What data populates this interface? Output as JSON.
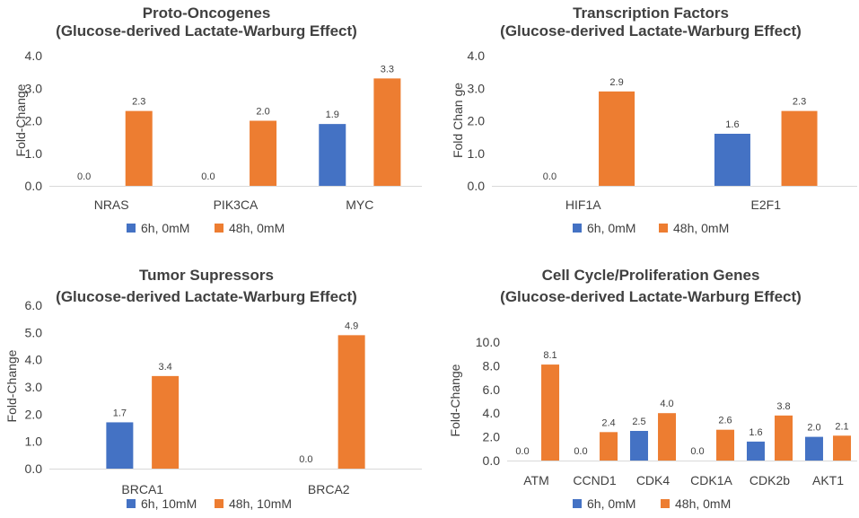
{
  "colors": {
    "series1": "#4472C4",
    "series2": "#ED7D31"
  },
  "chart_data": [
    {
      "type": "bar",
      "title": [
        "Proto-Oncogenes",
        "(Glucose-derived Lactate-Warburg Effect)"
      ],
      "ylabel": "Fold-Change",
      "ylim": [
        0,
        4
      ],
      "yticks": [
        "0.0",
        "1.0",
        "2.0",
        "3.0",
        "4.0"
      ],
      "categories": [
        "NRAS",
        "PIK3CA",
        "MYC"
      ],
      "series": [
        {
          "name": "6h, 0mM",
          "values": [
            0.0,
            0.0,
            1.9
          ],
          "labels": [
            "0.0",
            "0.0",
            "1.9"
          ]
        },
        {
          "name": "48h, 0mM",
          "values": [
            2.3,
            2.0,
            3.3
          ],
          "labels": [
            "2.3",
            "2.0",
            "3.3"
          ]
        }
      ]
    },
    {
      "type": "bar",
      "title": [
        "Transcription Factors",
        "(Glucose-derived Lactate-Warburg Effect)"
      ],
      "ylabel": "Fold Chan ge",
      "ylim": [
        0,
        4
      ],
      "yticks": [
        "0.0",
        "1.0",
        "2.0",
        "3.0",
        "4.0"
      ],
      "categories": [
        "HIF1A",
        "E2F1"
      ],
      "series": [
        {
          "name": "6h, 0mM",
          "values": [
            0.0,
            1.6
          ],
          "labels": [
            "0.0",
            "1.6"
          ]
        },
        {
          "name": "48h, 0mM",
          "values": [
            2.9,
            2.3
          ],
          "labels": [
            "2.9",
            "2.3"
          ]
        }
      ]
    },
    {
      "type": "bar",
      "title": [
        "Tumor Supressors",
        "(Glucose-derived Lactate-Warburg Effect)"
      ],
      "ylabel": "Fold-Change",
      "ylim": [
        0,
        6
      ],
      "yticks": [
        "0.0",
        "1.0",
        "2.0",
        "3.0",
        "4.0",
        "5.0",
        "6.0"
      ],
      "categories": [
        "BRCA1",
        "BRCA2"
      ],
      "series": [
        {
          "name": "6h, 10mM",
          "values": [
            1.7,
            0.0
          ],
          "labels": [
            "1.7",
            "0.0"
          ]
        },
        {
          "name": "48h, 10mM",
          "values": [
            3.4,
            4.9
          ],
          "labels": [
            "3.4",
            "4.9"
          ]
        }
      ]
    },
    {
      "type": "bar",
      "title": [
        "Cell Cycle/Proliferation Genes",
        "(Glucose-derived Lactate-Warburg Effect)"
      ],
      "ylabel": "Fold-Change",
      "ylim": [
        0,
        10
      ],
      "yticks": [
        "0.0",
        "2.0",
        "4.0",
        "6.0",
        "8.0",
        "10.0"
      ],
      "categories": [
        "ATM",
        "CCND1",
        "CDK4",
        "CDK1A",
        "CDK2b",
        "AKT1"
      ],
      "series": [
        {
          "name": "6h, 0mM",
          "values": [
            0.0,
            0.0,
            2.5,
            0.0,
            1.6,
            2.0
          ],
          "labels": [
            "0.0",
            "0.0",
            "2.5",
            "0.0",
            "1.6",
            "2.0"
          ]
        },
        {
          "name": "48h, 0mM",
          "values": [
            8.1,
            2.4,
            4.0,
            2.6,
            3.8,
            2.1
          ],
          "labels": [
            "8.1",
            "2.4",
            "4.0",
            "2.6",
            "3.8",
            "2.1"
          ]
        }
      ]
    }
  ]
}
